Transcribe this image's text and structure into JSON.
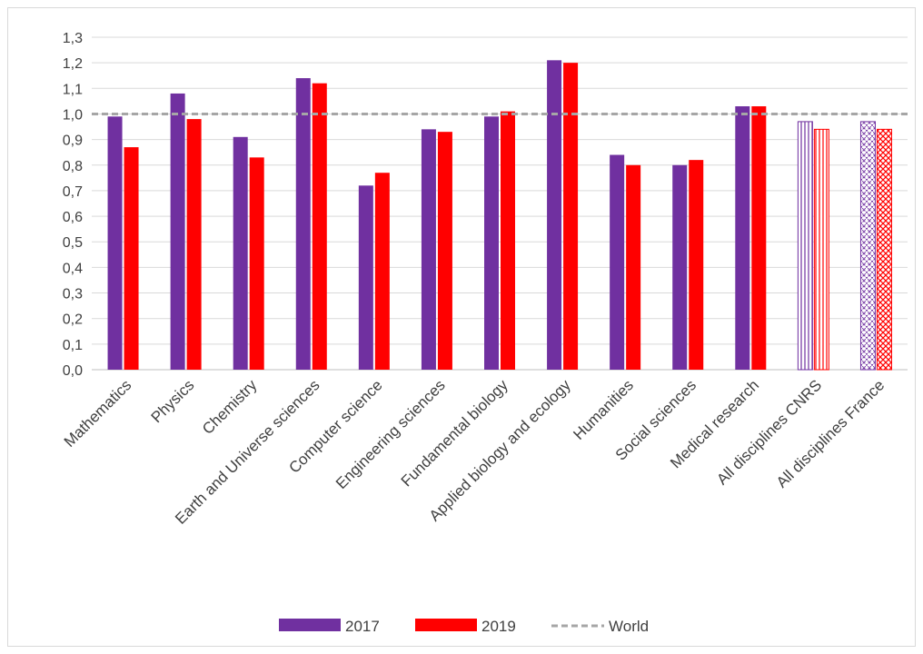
{
  "chart_data": {
    "type": "bar",
    "categories": [
      "Mathematics",
      "Physics",
      "Chemistry",
      "Earth and Universe sciences",
      "Computer science",
      "Engineering sciences",
      "Fundamental biology",
      "Applied biology and ecology",
      "Humanities",
      "Social sciences",
      "Medical research",
      "All disciplines CNRS",
      "All disciplines France"
    ],
    "series": [
      {
        "name": "2017",
        "color": "#7030a0",
        "values": [
          0.99,
          1.08,
          0.91,
          1.14,
          0.72,
          0.94,
          0.99,
          1.21,
          0.84,
          0.8,
          1.03,
          0.97,
          0.97
        ],
        "hatched_categories": [
          "All disciplines CNRS",
          "All disciplines France"
        ]
      },
      {
        "name": "2019",
        "color": "#ff0000",
        "values": [
          0.87,
          0.98,
          0.83,
          1.12,
          0.77,
          0.93,
          1.01,
          1.2,
          0.8,
          0.82,
          1.03,
          0.94,
          0.94
        ],
        "hatched_categories": [
          "All disciplines CNRS",
          "All disciplines France"
        ]
      }
    ],
    "reference_line": {
      "name": "World",
      "value": 1.0,
      "color": "#a6a6a6",
      "style": "dashed"
    },
    "ylim": [
      0,
      1.3
    ],
    "yticks": [
      "0,0",
      "0,1",
      "0,2",
      "0,3",
      "0,4",
      "0,5",
      "0,6",
      "0,7",
      "0,8",
      "0,9",
      "1,0",
      "1,1",
      "1,2",
      "1,3"
    ],
    "grid": true,
    "legend_position": "bottom",
    "title": "",
    "xlabel": "",
    "ylabel": ""
  }
}
